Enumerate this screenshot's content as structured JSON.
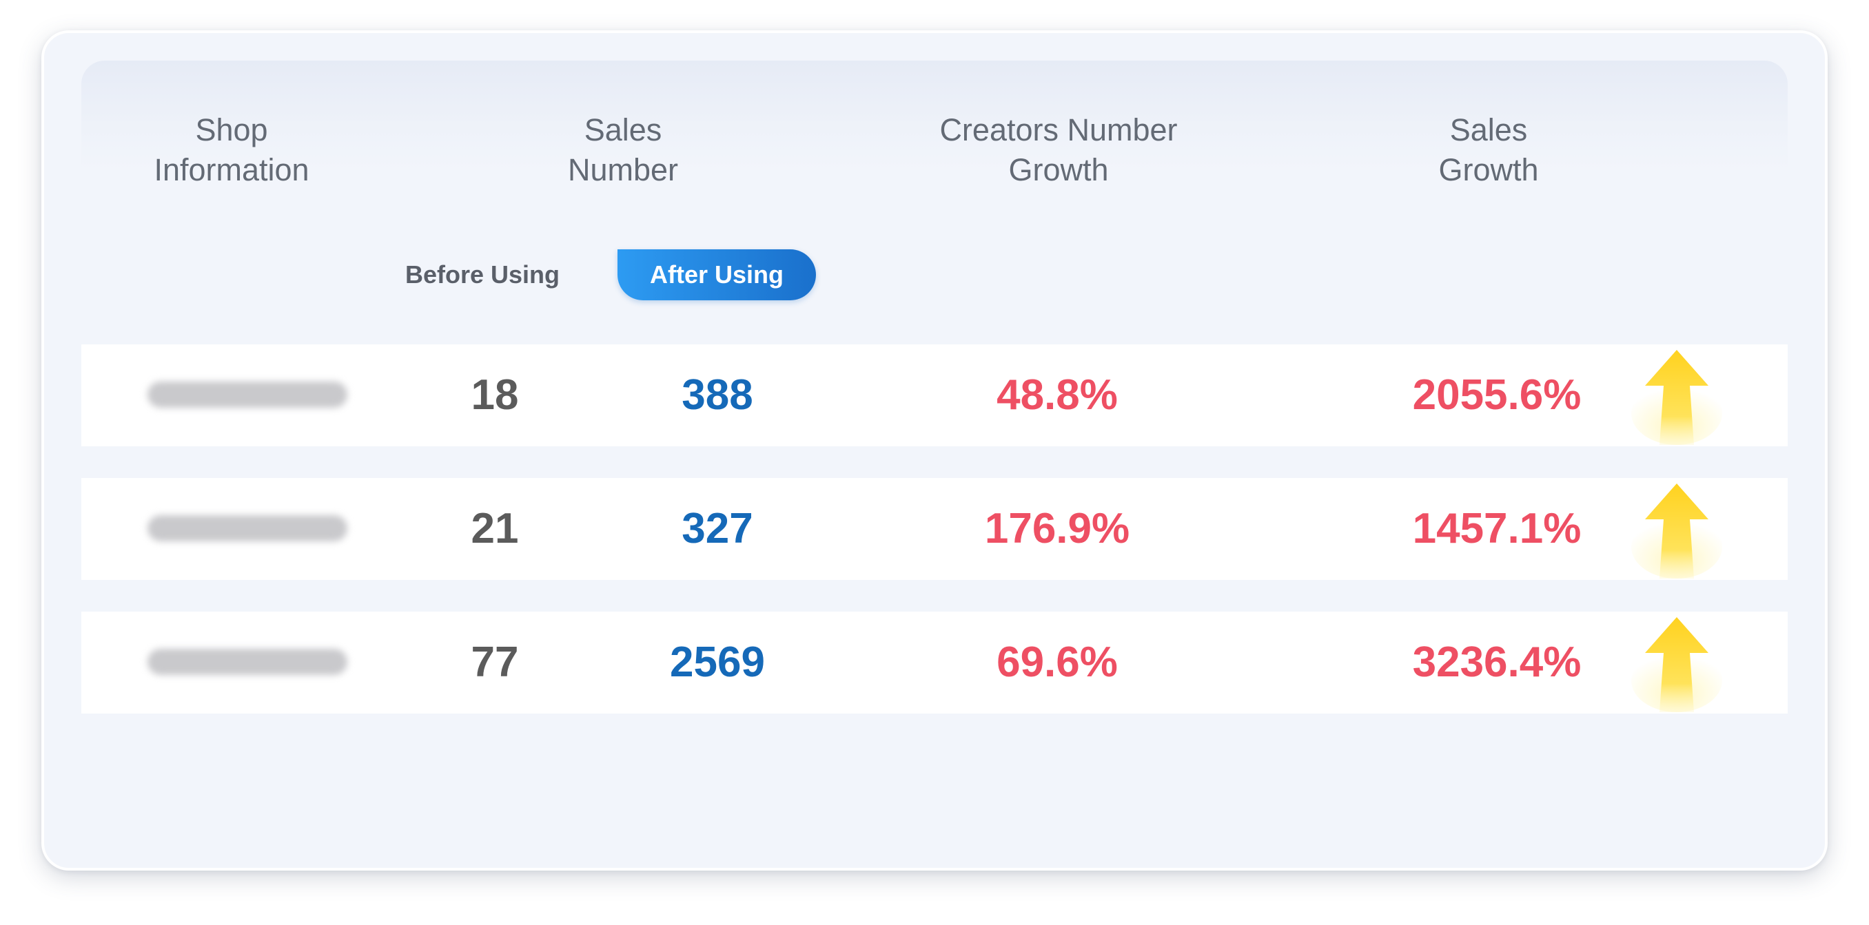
{
  "headers": {
    "shop_line1": "Shop",
    "shop_line2": "Information",
    "sales_line1": "Sales",
    "sales_line2": "Number",
    "creators_line1": "Creators Number",
    "creators_line2": "Growth",
    "growth_line1": "Sales",
    "growth_line2": "Growth"
  },
  "toggle": {
    "before_label": "Before Using",
    "after_label": "After Using",
    "selected": "After Using"
  },
  "rows": [
    {
      "before": "18",
      "after": "388",
      "creators_growth": "48.8%",
      "sales_growth": "2055.6%"
    },
    {
      "before": "21",
      "after": "327",
      "creators_growth": "176.9%",
      "sales_growth": "1457.1%"
    },
    {
      "before": "77",
      "after": "2569",
      "creators_growth": "69.6%",
      "sales_growth": "3236.4%"
    }
  ],
  "colors": {
    "before_value": "#5b5b5b",
    "after_value": "#1569b8",
    "growth_value": "#ee4f63",
    "toggle_active": "#1a70cc",
    "arrow": "#ffd21f"
  },
  "icons": {
    "growth_arrow": "up-arrow-icon"
  }
}
